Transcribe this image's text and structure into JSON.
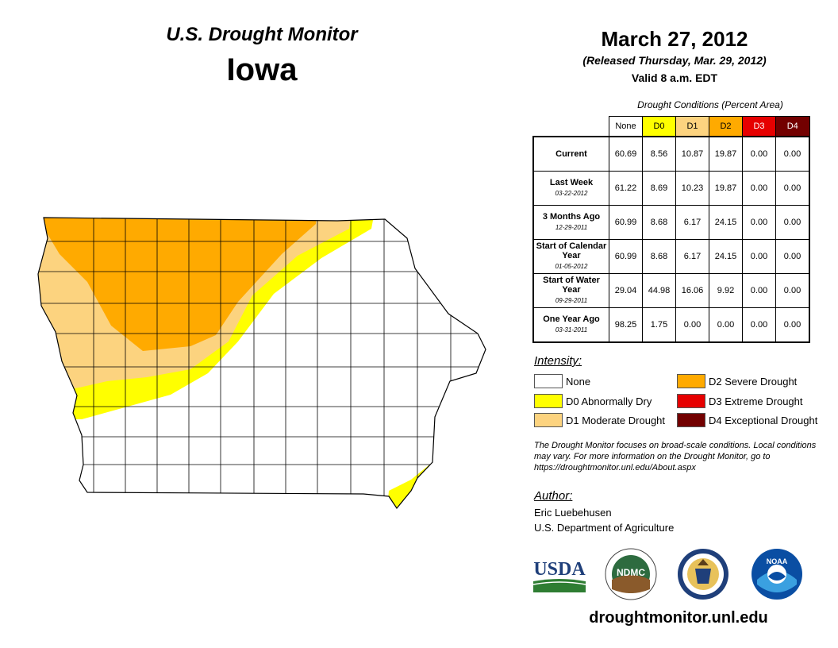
{
  "header": {
    "title": "U.S. Drought Monitor",
    "state": "Iowa"
  },
  "report": {
    "date": "March 27, 2012",
    "released": "(Released Thursday, Mar. 29, 2012)",
    "valid": "Valid 8 a.m. EDT"
  },
  "table": {
    "caption": "Drought Conditions (Percent Area)",
    "columns": [
      "None",
      "D0",
      "D1",
      "D2",
      "D3",
      "D4"
    ],
    "rows": [
      {
        "label": "Current",
        "date": "",
        "values": [
          "60.69",
          "8.56",
          "10.87",
          "19.87",
          "0.00",
          "0.00"
        ]
      },
      {
        "label": "Last Week",
        "date": "03-22-2012",
        "values": [
          "61.22",
          "8.69",
          "10.23",
          "19.87",
          "0.00",
          "0.00"
        ]
      },
      {
        "label": "3 Months Ago",
        "date": "12-29-2011",
        "values": [
          "60.99",
          "8.68",
          "6.17",
          "24.15",
          "0.00",
          "0.00"
        ]
      },
      {
        "label": "Start of Calendar Year",
        "date": "01-05-2012",
        "values": [
          "60.99",
          "8.68",
          "6.17",
          "24.15",
          "0.00",
          "0.00"
        ]
      },
      {
        "label": "Start of Water Year",
        "date": "09-29-2011",
        "values": [
          "29.04",
          "44.98",
          "16.06",
          "9.92",
          "0.00",
          "0.00"
        ]
      },
      {
        "label": "One Year Ago",
        "date": "03-31-2011",
        "values": [
          "98.25",
          "1.75",
          "0.00",
          "0.00",
          "0.00",
          "0.00"
        ]
      }
    ]
  },
  "legend": {
    "heading": "Intensity:",
    "items": [
      {
        "label": "None",
        "color": "#ffffff"
      },
      {
        "label": "D0 Abnormally Dry",
        "color": "#ffff00"
      },
      {
        "label": "D1 Moderate Drought",
        "color": "#fcd37f"
      },
      {
        "label": "D2 Severe Drought",
        "color": "#ffaa00"
      },
      {
        "label": "D3 Extreme Drought",
        "color": "#e60000"
      },
      {
        "label": "D4 Exceptional Drought",
        "color": "#730000"
      }
    ]
  },
  "note": "The Drought Monitor focuses on broad-scale conditions. Local conditions may vary. For more information on the Drought Monitor, go to https://droughtmonitor.unl.edu/About.aspx",
  "author": {
    "heading": "Author:",
    "name": "Eric Luebehusen",
    "org": "U.S. Department of Agriculture"
  },
  "logos": {
    "usda": "USDA",
    "ndmc": "NDMC",
    "noaa": "NOAA"
  },
  "footer": {
    "url": "droughtmonitor.unl.edu"
  },
  "colors": {
    "none": "#ffffff",
    "d0": "#ffff00",
    "d1": "#fcd37f",
    "d2": "#ffaa00",
    "d3": "#e60000",
    "d4": "#730000"
  }
}
